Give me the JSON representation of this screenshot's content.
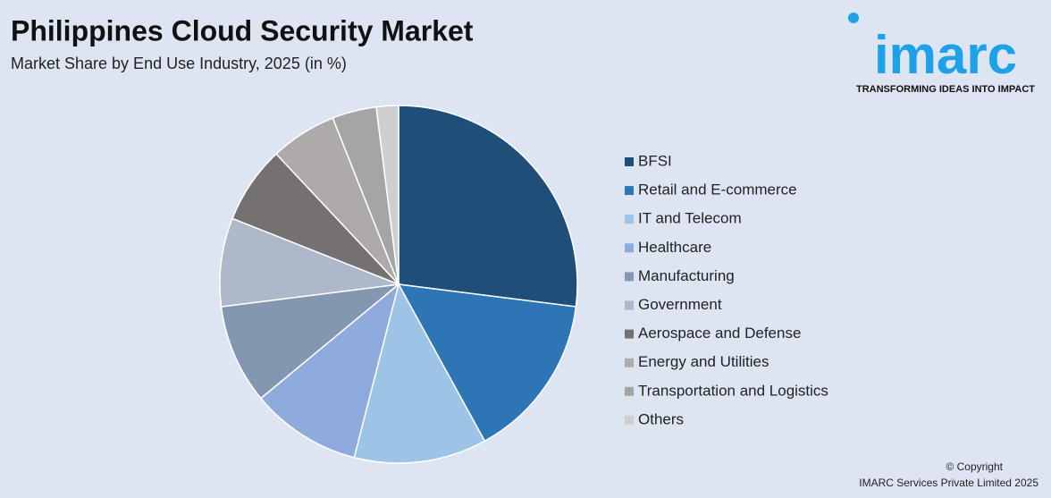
{
  "chart_data": {
    "type": "pie",
    "title": "Philippines Cloud Security Market",
    "subtitle": "Market Share by End Use Industry, 2025 (in %)",
    "categories": [
      "BFSI",
      "Retail and E-commerce",
      "IT and Telecom",
      "Healthcare",
      "Manufacturing",
      "Government",
      "Aerospace and Defense",
      "Energy and Utilities",
      "Transportation and Logistics",
      "Others"
    ],
    "values": [
      27,
      15,
      12,
      10,
      9,
      8,
      7,
      6,
      4,
      2
    ],
    "colors": [
      "#1f4e79",
      "#2e75b6",
      "#9dc3e6",
      "#8faadc",
      "#8497b0",
      "#adb9ca",
      "#767171",
      "#aeaaaa",
      "#a5a5a5",
      "#d0cece"
    ],
    "legend": "right"
  },
  "logo": {
    "name": "imarc",
    "tagline": "TRANSFORMING IDEAS INTO IMPACT"
  },
  "footer": {
    "line1": "© Copyright",
    "line2": "IMARC Services Private Limited 2025"
  }
}
